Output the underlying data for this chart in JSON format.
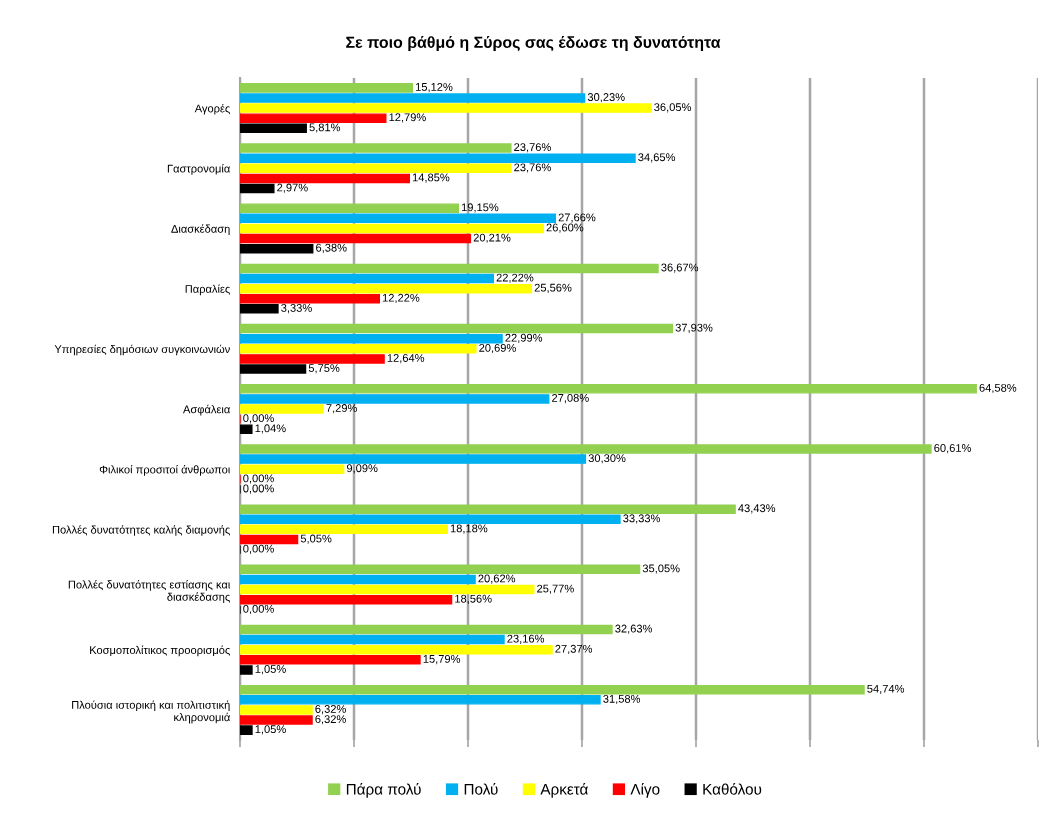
{
  "chart_data": {
    "type": "bar",
    "orientation": "horizontal",
    "title": "Σε ποιο βάθμό η Σύρος σας έδωσε τη δυνατότητα",
    "categories": [
      "Αγορές",
      "Γαστρονομία",
      "Διασκέδαση",
      "Παραλίες",
      "Υπηρεσίες δημόσιων συγκοινωνιών",
      "Ασφάλεια",
      "Φιλικοί προσιτοί άνθρωποι",
      "Πολλές δυνατότητες καλής διαμονής",
      "Πολλές δυνατότητες εστίασης και\nδιασκέδασης",
      "Κοσμοπολίτικος προορισμός",
      "Πλούσια ιστορική και πολιτιστική\nκληρονομιά"
    ],
    "series": [
      {
        "name": "Πάρα πολύ",
        "color": "#92d050",
        "values": [
          15.12,
          23.76,
          19.15,
          36.67,
          37.93,
          64.58,
          60.61,
          43.43,
          35.05,
          32.63,
          54.74
        ],
        "value_labels": [
          "15,12%",
          "23,76%",
          "19,15%",
          "36,67%",
          "37,93%",
          "64,58%",
          "60,61%",
          "43,43%",
          "35,05%",
          "32,63%",
          "54,74%"
        ]
      },
      {
        "name": "Πολύ",
        "color": "#00b0f0",
        "values": [
          30.23,
          34.65,
          27.66,
          22.22,
          22.99,
          27.08,
          30.3,
          33.33,
          20.62,
          23.16,
          31.58
        ],
        "value_labels": [
          "30,23%",
          "34,65%",
          "27,66%",
          "22,22%",
          "22,99%",
          "27,08%",
          "30,30%",
          "33,33%",
          "20,62%",
          "23,16%",
          "31,58%"
        ]
      },
      {
        "name": "Αρκετά",
        "color": "#ffff00",
        "values": [
          36.05,
          23.76,
          26.6,
          25.56,
          20.69,
          7.29,
          9.09,
          18.18,
          25.77,
          27.37,
          6.32
        ],
        "value_labels": [
          "36,05%",
          "23,76%",
          "26,60%",
          "25,56%",
          "20,69%",
          "7,29%",
          "9,09%",
          "18,18%",
          "25,77%",
          "27,37%",
          "6,32%"
        ]
      },
      {
        "name": "Λίγο",
        "color": "#ff0000",
        "values": [
          12.79,
          14.85,
          20.21,
          12.22,
          12.64,
          0.0,
          0.0,
          5.05,
          18.56,
          15.79,
          6.32
        ],
        "value_labels": [
          "12,79%",
          "14,85%",
          "20,21%",
          "12,22%",
          "12,64%",
          "0,00%",
          "0,00%",
          "5,05%",
          "18,56%",
          "15,79%",
          "6,32%"
        ]
      },
      {
        "name": "Καθόλου",
        "color": "#000000",
        "values": [
          5.81,
          2.97,
          6.38,
          3.33,
          5.75,
          1.04,
          0.0,
          0.0,
          0.0,
          1.05,
          1.05
        ],
        "value_labels": [
          "5,81%",
          "2,97%",
          "6,38%",
          "3,33%",
          "5,75%",
          "1,04%",
          "0,00%",
          "0,00%",
          "0,00%",
          "1,05%",
          "1,05%"
        ]
      }
    ],
    "xlim": [
      0,
      70
    ],
    "xticks": [
      {
        "value": 0,
        "label": null
      },
      {
        "value": 10,
        "label": null
      },
      {
        "value": 20,
        "label": null
      },
      {
        "value": 30,
        "label": null
      },
      {
        "value": 40,
        "label": null
      },
      {
        "value": 50,
        "label": null
      },
      {
        "value": 60,
        "label": null
      },
      {
        "value": 70,
        "label": null
      }
    ],
    "grid": "x",
    "legend": "bottom",
    "tick_labels": "y"
  }
}
